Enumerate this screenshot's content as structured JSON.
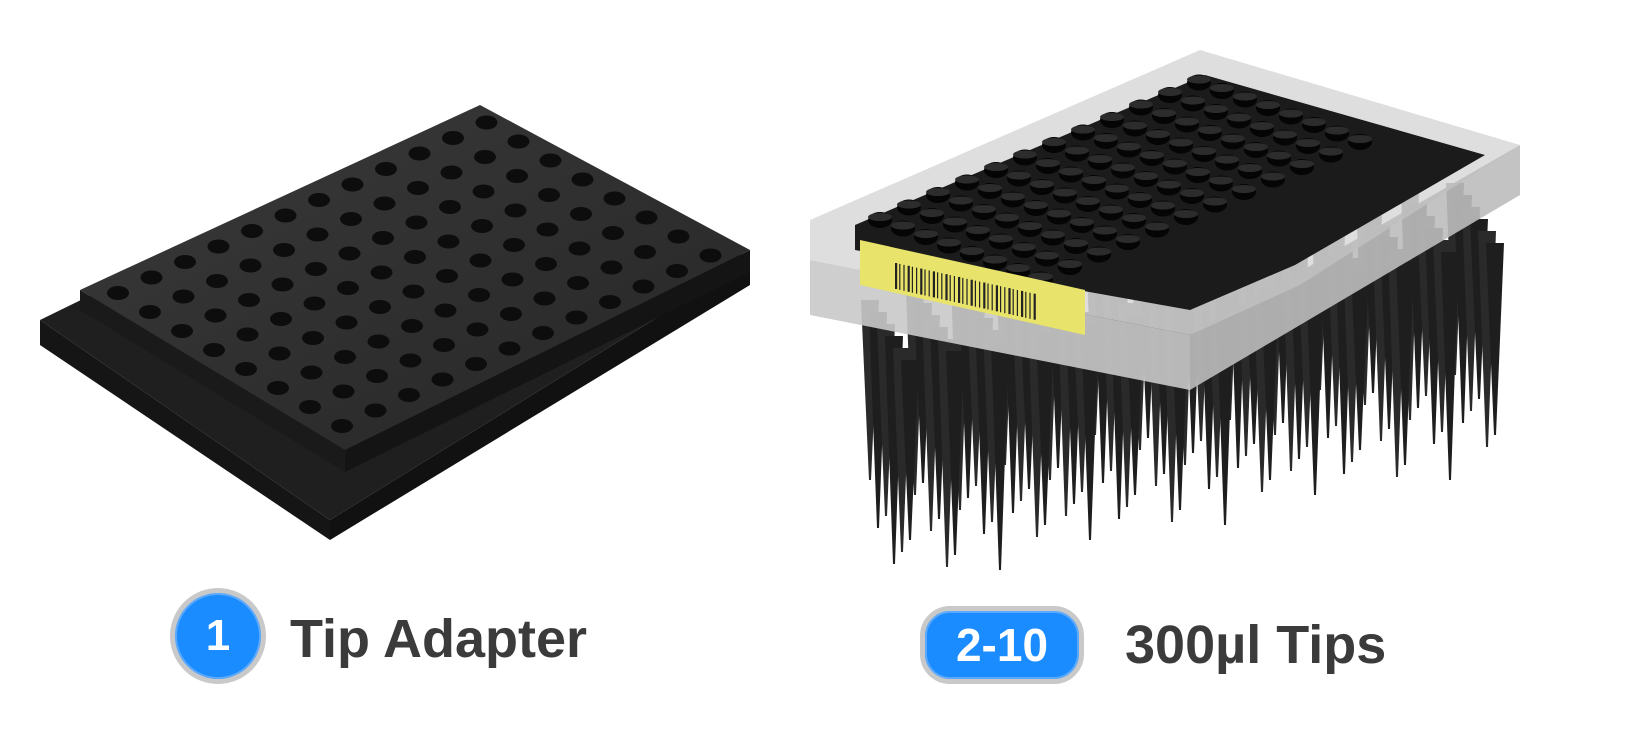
{
  "items": [
    {
      "badge": "1",
      "label": "Tip Adapter",
      "image": "tip-adapter-plate",
      "badge_color": "#1a8cff"
    },
    {
      "badge": "2-10",
      "label": "300µl Tips",
      "image": "pipette-tip-rack",
      "badge_color": "#1a8cff"
    }
  ],
  "colors": {
    "badge_fill": "#1a8cff",
    "badge_border": "#c9c9c9",
    "label_text": "#3b3b3b",
    "adapter_body": "#2b2b2b",
    "rack_label": "#e8e36a"
  }
}
